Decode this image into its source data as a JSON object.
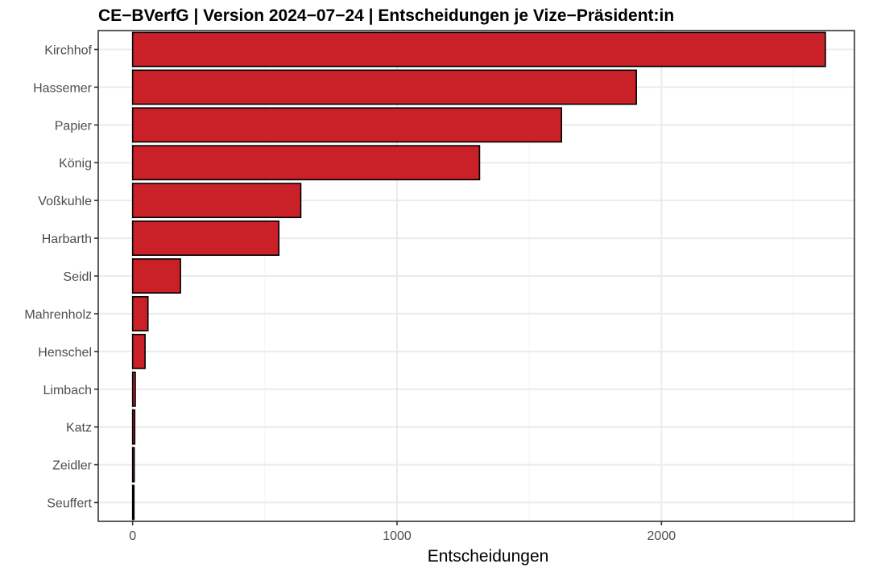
{
  "chart_data": {
    "type": "bar",
    "orientation": "horizontal",
    "title": "CE−BVerfG | Version 2024−07−24 | Entscheidungen je Vize−Präsident:in",
    "xlabel": "Entscheidungen",
    "ylabel": "",
    "categories": [
      "Kirchhof",
      "Hassemer",
      "Papier",
      "König",
      "Voßkuhle",
      "Harbarth",
      "Seidl",
      "Mahrenholz",
      "Henschel",
      "Limbach",
      "Katz",
      "Zeidler",
      "Seuffert"
    ],
    "values": [
      2620,
      1905,
      1622,
      1312,
      636,
      553,
      181,
      58,
      47,
      10,
      8,
      6,
      5
    ],
    "xlim": [
      -130,
      2730
    ],
    "x_ticks": [
      0,
      1000,
      2000
    ],
    "x_tick_labels": [
      "0",
      "1000",
      "2000"
    ],
    "grid": true,
    "legend": "none",
    "colors": {
      "bar_fill": "#CA2129",
      "bar_stroke": "#000000",
      "grid_major": "#EBEBEB",
      "grid_minor": "#F5F5F5",
      "panel_border": "#333333"
    }
  }
}
